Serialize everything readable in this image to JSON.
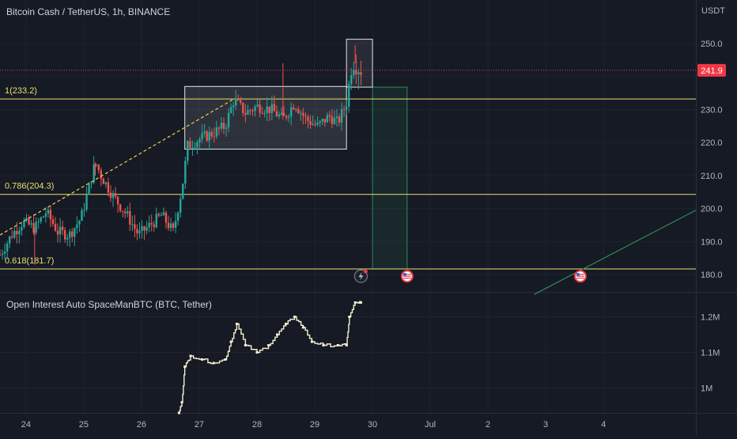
{
  "header": {
    "symbol_title": "Bitcoin Cash / TetherUS, 1h, BINANCE",
    "currency": "USDT"
  },
  "indicator": {
    "title": "Open Interest Auto SpaceManBTC (BTC, Tether)"
  },
  "colors": {
    "background": "#161a25",
    "up": "#26a69a",
    "down": "#ef5350",
    "fib": "#e8e06b",
    "target_zone": "#2e8b57",
    "trendline": "#e8d44d",
    "oi_line": "#f5f0d0"
  },
  "chart_data": [
    {
      "type": "candlestick",
      "title": "Bitcoin Cash / TetherUS, 1h, BINANCE",
      "y_axis": {
        "unit": "USDT",
        "ticks": [
          180,
          190,
          200,
          210,
          220,
          230,
          240,
          250
        ],
        "tick_labels": [
          "180.0",
          "190.0",
          "200.0",
          "210.0",
          "220.0",
          "230.0",
          "240.0",
          "250.0"
        ],
        "range": [
          175,
          256
        ]
      },
      "x_axis": {
        "tick_labels": [
          "24",
          "25",
          "26",
          "27",
          "28",
          "29",
          "30",
          "Jul",
          "2",
          "3",
          "4"
        ],
        "range_days": [
          23.55,
          35.6
        ]
      },
      "last_price": {
        "value": 241.9,
        "label": "241.9"
      },
      "fib_levels": [
        {
          "ratio": 1,
          "price": 233.2,
          "label": "1(233.2)"
        },
        {
          "ratio": 0.786,
          "price": 204.3,
          "label": "0.786(204.3)"
        },
        {
          "ratio": 0.618,
          "price": 181.7,
          "label": "0.618(181.7)"
        }
      ],
      "price_path": [
        {
          "d": 23.55,
          "p": 186
        },
        {
          "d": 23.75,
          "p": 192
        },
        {
          "d": 23.95,
          "p": 196
        },
        {
          "d": 24.15,
          "p": 194
        },
        {
          "d": 24.35,
          "p": 199
        },
        {
          "d": 24.55,
          "p": 193
        },
        {
          "d": 24.75,
          "p": 192
        },
        {
          "d": 24.95,
          "p": 197
        },
        {
          "d": 25.1,
          "p": 207
        },
        {
          "d": 25.2,
          "p": 214
        },
        {
          "d": 25.3,
          "p": 210
        },
        {
          "d": 25.5,
          "p": 204
        },
        {
          "d": 25.75,
          "p": 198
        },
        {
          "d": 25.95,
          "p": 192
        },
        {
          "d": 26.15,
          "p": 195
        },
        {
          "d": 26.35,
          "p": 198
        },
        {
          "d": 26.55,
          "p": 193
        },
        {
          "d": 26.7,
          "p": 206
        },
        {
          "d": 26.8,
          "p": 219
        },
        {
          "d": 27.0,
          "p": 221
        },
        {
          "d": 27.25,
          "p": 223
        },
        {
          "d": 27.45,
          "p": 225
        },
        {
          "d": 27.6,
          "p": 233
        },
        {
          "d": 27.8,
          "p": 229
        },
        {
          "d": 28.0,
          "p": 231
        },
        {
          "d": 28.25,
          "p": 230
        },
        {
          "d": 28.45,
          "p": 227
        },
        {
          "d": 28.65,
          "p": 232
        },
        {
          "d": 28.85,
          "p": 227
        },
        {
          "d": 29.05,
          "p": 225
        },
        {
          "d": 29.25,
          "p": 228
        },
        {
          "d": 29.4,
          "p": 226
        },
        {
          "d": 29.55,
          "p": 232
        },
        {
          "d": 29.65,
          "p": 245
        },
        {
          "d": 29.75,
          "p": 243
        },
        {
          "d": 29.8,
          "p": 242
        }
      ],
      "consolidation_box": {
        "d_from": 26.75,
        "d_to": 29.55,
        "p_from": 218,
        "p_to": 237
      },
      "breakout_box": {
        "d_from": 29.55,
        "d_to": 30.0,
        "p_from": 236.8,
        "p_to": 251.3
      },
      "target_zone": {
        "d_from": 30.0,
        "d_to": 30.6,
        "p_from": 181.7,
        "p_to": 236.8
      },
      "trendline": {
        "d_from": 23.55,
        "p_from": 192,
        "d_to": 27.6,
        "p_to": 233.2
      },
      "ascending_line": {
        "d_from": 32.8,
        "p_from": 174,
        "d_to": 35.6,
        "p_to": 199.5
      },
      "event_markers": [
        {
          "icon": "lightning-icon",
          "d": 29.8,
          "p": 179.5
        },
        {
          "icon": "flag-icon",
          "d": 30.6,
          "p": 179.5
        },
        {
          "icon": "flag-icon",
          "d": 33.6,
          "p": 179.5
        }
      ]
    },
    {
      "type": "step-line",
      "title": "Open Interest Auto SpaceManBTC (BTC, Tether)",
      "y_axis": {
        "ticks": [
          1.0,
          1.1,
          1.2
        ],
        "tick_labels": [
          "1M",
          "1.1M",
          "1.2M"
        ],
        "range": [
          0.93,
          1.25
        ],
        "unit": "M"
      },
      "series": [
        {
          "d": 26.65,
          "v": 0.93
        },
        {
          "d": 26.7,
          "v": 0.96
        },
        {
          "d": 26.75,
          "v": 1.06
        },
        {
          "d": 26.85,
          "v": 1.09
        },
        {
          "d": 27.05,
          "v": 1.08
        },
        {
          "d": 27.25,
          "v": 1.07
        },
        {
          "d": 27.45,
          "v": 1.08
        },
        {
          "d": 27.55,
          "v": 1.13
        },
        {
          "d": 27.65,
          "v": 1.18
        },
        {
          "d": 27.8,
          "v": 1.12
        },
        {
          "d": 28.0,
          "v": 1.1
        },
        {
          "d": 28.2,
          "v": 1.12
        },
        {
          "d": 28.35,
          "v": 1.15
        },
        {
          "d": 28.5,
          "v": 1.18
        },
        {
          "d": 28.65,
          "v": 1.2
        },
        {
          "d": 28.8,
          "v": 1.17
        },
        {
          "d": 28.95,
          "v": 1.13
        },
        {
          "d": 29.15,
          "v": 1.12
        },
        {
          "d": 29.4,
          "v": 1.12
        },
        {
          "d": 29.55,
          "v": 1.12
        },
        {
          "d": 29.6,
          "v": 1.2
        },
        {
          "d": 29.7,
          "v": 1.24
        },
        {
          "d": 29.8,
          "v": 1.24
        }
      ]
    }
  ]
}
